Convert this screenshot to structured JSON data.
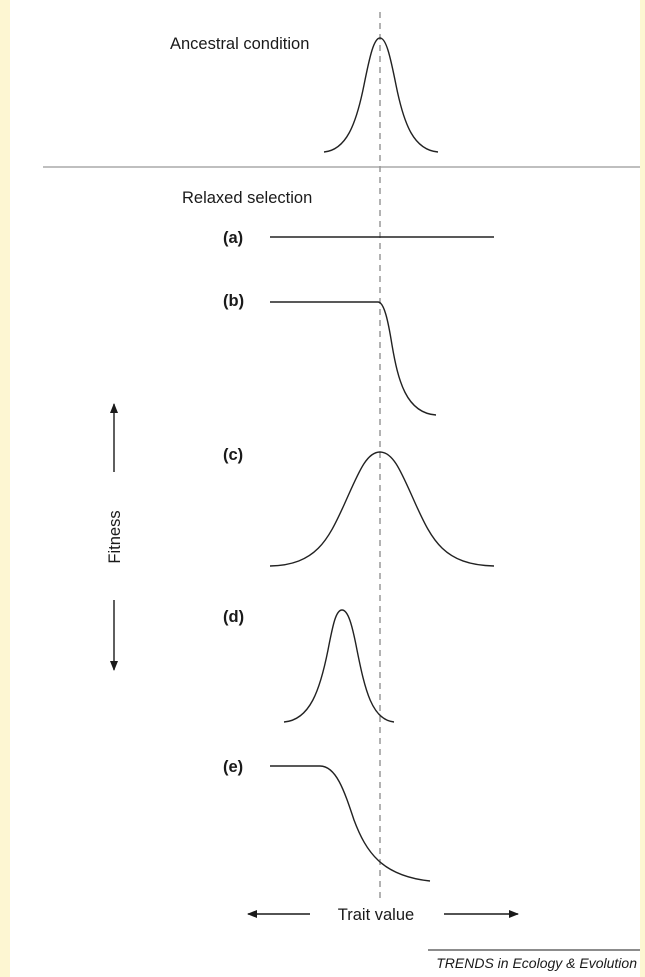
{
  "figure": {
    "ancestral_label": "Ancestral condition",
    "relaxed_label": "Relaxed selection",
    "panels": [
      {
        "id": "a",
        "label": "(a)",
        "shape": "flat"
      },
      {
        "id": "b",
        "label": "(b)",
        "shape": "plateau-then-drop"
      },
      {
        "id": "c",
        "label": "(c)",
        "shape": "broad-peak"
      },
      {
        "id": "d",
        "label": "(d)",
        "shape": "narrow-peak-shifted-left"
      },
      {
        "id": "e",
        "label": "(e)",
        "shape": "plateau-then-drop-shifted-left"
      }
    ],
    "y_axis_label": "Fitness",
    "x_axis_label": "Trait value",
    "credit": "TRENDS in Ecology & Evolution"
  },
  "colors": {
    "frame_background": "#fdf6d2",
    "figure_background": "#ffffff",
    "ink": "#1a1a1a",
    "divider": "#999999",
    "reference_line": "#888888"
  }
}
